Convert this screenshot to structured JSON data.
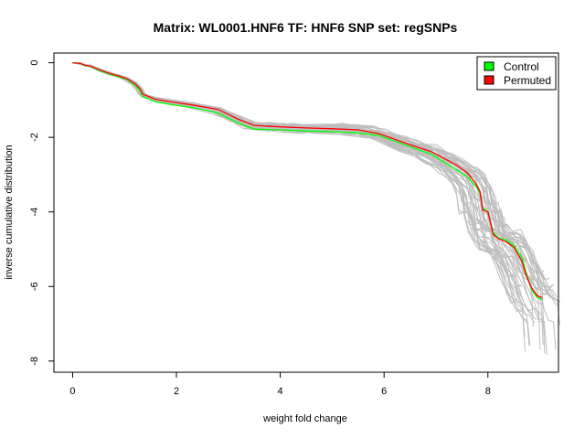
{
  "chart_data": {
    "type": "line",
    "title": "Matrix: WL0001.HNF6 TF: HNF6 SNP set: regSNPs",
    "xlabel": "weight fold change",
    "ylabel": "inverse cumulative distribution",
    "xlim": [
      -0.36,
      9.36
    ],
    "ylim": [
      -8.3,
      0.26
    ],
    "xticks": [
      0,
      2,
      4,
      6,
      8
    ],
    "yticks": [
      0,
      -2,
      -4,
      -6,
      -8
    ],
    "legend": {
      "position": "top-right",
      "entries": [
        {
          "label": "Control",
          "color": "#00FF00"
        },
        {
          "label": "Permuted",
          "color": "#FF0000"
        }
      ]
    },
    "background_color": "#BEBEBE",
    "permuted_background_count": 45,
    "series": [
      {
        "name": "Control",
        "color": "#00FF00",
        "x": [
          0.0,
          0.15,
          0.25,
          0.35,
          0.5,
          0.7,
          0.9,
          1.05,
          1.2,
          1.3,
          1.35,
          1.4,
          1.6,
          1.9,
          2.3,
          2.8,
          3.2,
          3.5,
          4.0,
          4.5,
          5.0,
          5.5,
          5.9,
          6.1,
          6.5,
          6.9,
          7.2,
          7.4,
          7.6,
          7.75,
          7.85,
          7.9,
          8.0,
          8.1,
          8.2,
          8.35,
          8.5,
          8.65,
          8.75,
          8.85,
          8.95,
          9.05
        ],
        "values": [
          0.0,
          -0.02,
          -0.08,
          -0.1,
          -0.2,
          -0.3,
          -0.38,
          -0.45,
          -0.6,
          -0.75,
          -0.9,
          -0.93,
          -1.05,
          -1.12,
          -1.2,
          -1.35,
          -1.62,
          -1.78,
          -1.8,
          -1.83,
          -1.85,
          -1.88,
          -1.95,
          -2.05,
          -2.25,
          -2.45,
          -2.7,
          -2.88,
          -3.05,
          -3.28,
          -3.5,
          -3.9,
          -4.0,
          -4.55,
          -4.7,
          -4.75,
          -4.9,
          -5.2,
          -5.7,
          -6.1,
          -6.3,
          -6.35
        ]
      },
      {
        "name": "Permuted",
        "color": "#FF0000",
        "x": [
          0.0,
          0.15,
          0.25,
          0.35,
          0.5,
          0.7,
          0.9,
          1.05,
          1.2,
          1.3,
          1.35,
          1.4,
          1.6,
          1.9,
          2.3,
          2.8,
          3.2,
          3.5,
          4.0,
          4.5,
          5.0,
          5.5,
          5.9,
          6.1,
          6.5,
          6.9,
          7.2,
          7.4,
          7.6,
          7.75,
          7.85,
          7.9,
          8.0,
          8.1,
          8.2,
          8.35,
          8.5,
          8.65,
          8.75,
          8.85,
          8.95,
          9.05
        ],
        "values": [
          0.0,
          -0.02,
          -0.07,
          -0.09,
          -0.18,
          -0.28,
          -0.36,
          -0.43,
          -0.56,
          -0.7,
          -0.84,
          -0.87,
          -0.98,
          -1.05,
          -1.13,
          -1.25,
          -1.52,
          -1.68,
          -1.72,
          -1.75,
          -1.77,
          -1.8,
          -1.9,
          -2.0,
          -2.2,
          -2.38,
          -2.6,
          -2.75,
          -2.95,
          -3.2,
          -3.45,
          -3.95,
          -4.0,
          -4.6,
          -4.72,
          -4.8,
          -4.95,
          -5.3,
          -5.75,
          -6.05,
          -6.25,
          -6.3
        ]
      }
    ]
  }
}
